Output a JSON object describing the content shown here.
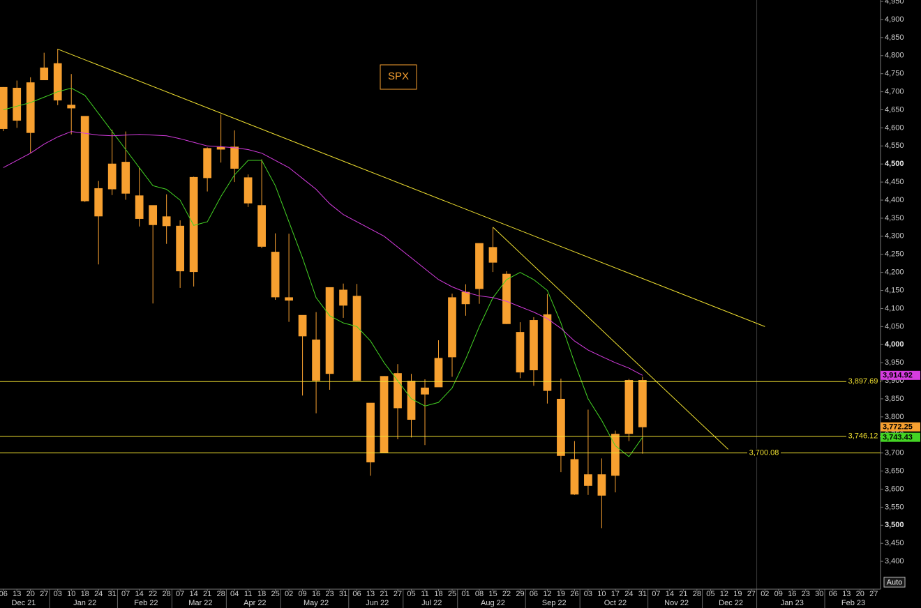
{
  "chart_data": {
    "type": "candlestick",
    "label": "SPX",
    "auto_button": "Auto",
    "ylim": [
      3323,
      4954
    ],
    "yticks": [
      {
        "value": 3400,
        "label": "3,400"
      },
      {
        "value": 3450,
        "label": "3,450"
      },
      {
        "value": 3500,
        "label": "3,500"
      },
      {
        "value": 3550,
        "label": "3,550"
      },
      {
        "value": 3600,
        "label": "3,600"
      },
      {
        "value": 3650,
        "label": "3,650"
      },
      {
        "value": 3700,
        "label": "3,700"
      },
      {
        "value": 3750,
        "label": "3,750"
      },
      {
        "value": 3800,
        "label": "3,800"
      },
      {
        "value": 3850,
        "label": "3,850"
      },
      {
        "value": 3900,
        "label": "3,900"
      },
      {
        "value": 3950,
        "label": "3,950"
      },
      {
        "value": 4000,
        "label": "4,000"
      },
      {
        "value": 4050,
        "label": "4,050"
      },
      {
        "value": 4100,
        "label": "4,100"
      },
      {
        "value": 4150,
        "label": "4,150"
      },
      {
        "value": 4200,
        "label": "4,200"
      },
      {
        "value": 4250,
        "label": "4,250"
      },
      {
        "value": 4300,
        "label": "4,300"
      },
      {
        "value": 4350,
        "label": "4,350"
      },
      {
        "value": 4400,
        "label": "4,400"
      },
      {
        "value": 4450,
        "label": "4,450"
      },
      {
        "value": 4500,
        "label": "4,500"
      },
      {
        "value": 4550,
        "label": "4,550"
      },
      {
        "value": 4600,
        "label": "4,600"
      },
      {
        "value": 4650,
        "label": "4,650"
      },
      {
        "value": 4700,
        "label": "4,700"
      },
      {
        "value": 4750,
        "label": "4,750"
      },
      {
        "value": 4800,
        "label": "4,800"
      },
      {
        "value": 4850,
        "label": "4,850"
      },
      {
        "value": 4900,
        "label": "4,900"
      },
      {
        "value": 4950,
        "label": "4,950"
      }
    ],
    "categories": [
      "06",
      "13",
      "20",
      "27",
      "03",
      "10",
      "18",
      "24",
      "31",
      "07",
      "14",
      "22",
      "28",
      "07",
      "14",
      "21",
      "28",
      "04",
      "11",
      "18",
      "25",
      "02",
      "09",
      "16",
      "23",
      "31",
      "06",
      "13",
      "21",
      "27",
      "05",
      "11",
      "18",
      "25",
      "01",
      "08",
      "15",
      "22",
      "29",
      "06",
      "12",
      "19",
      "26",
      "03",
      "10",
      "17",
      "24",
      "31",
      "07",
      "14",
      "21",
      "28",
      "05",
      "12",
      "19",
      "27",
      "02",
      "09",
      "16",
      "23",
      "30",
      "06",
      "13",
      "20",
      "27"
    ],
    "months": [
      "Dec 21",
      null,
      null,
      null,
      "Jan 22",
      null,
      null,
      null,
      null,
      "Feb 22",
      null,
      null,
      null,
      "Mar 22",
      null,
      null,
      null,
      "Apr 22",
      null,
      null,
      null,
      "May 22",
      null,
      null,
      null,
      null,
      "Jun 22",
      null,
      null,
      null,
      "Jul 22",
      null,
      null,
      null,
      "Aug 22",
      null,
      null,
      null,
      null,
      "Sep 22",
      null,
      null,
      null,
      "Oct 22",
      null,
      null,
      null,
      null,
      "Nov 22",
      null,
      null,
      null,
      "Dec 22",
      null,
      null,
      null,
      "Jan 23",
      null,
      null,
      null,
      null,
      "Feb 23",
      null,
      null,
      null
    ],
    "series": [
      {
        "name": "SPX",
        "color": "#f7a030",
        "last_label": "3,772.25",
        "open": [
          4598,
          4710,
          4587,
          4733,
          4778,
          4655,
          4632,
          4356,
          4431,
          4505,
          4412,
          4332,
          4354,
          4328,
          4202,
          4462,
          4541,
          4547,
          4462,
          4385,
          4256,
          4130,
          4081,
          4013,
          3920,
          4151,
          4134,
          3838,
          3701,
          3920,
          3793,
          3880,
          3883,
          3966,
          4113,
          4155,
          4269,
          4195,
          4034,
          3930,
          4083,
          3849,
          3682,
          3610,
          3640,
          3638,
          3754,
          3901,
          null,
          null,
          null,
          null,
          null,
          null,
          null,
          null,
          null,
          null,
          null,
          null,
          null,
          null,
          null,
          null,
          null
        ],
        "high": [
          4713,
          4731,
          4740,
          4808,
          4819,
          4749,
          4632,
          4453,
          4595,
          4590,
          4490,
          4385,
          4416,
          4344,
          4465,
          4546,
          4637,
          4593,
          4471,
          4513,
          4308,
          4307,
          4081,
          4090,
          4158,
          4169,
          4168,
          3838,
          3913,
          3946,
          3919,
          3904,
          4012,
          4141,
          4167,
          4280,
          4325,
          4203,
          4062,
          4076,
          4140,
          3906,
          3733,
          3820,
          3685,
          3762,
          3905,
          3911,
          null,
          null,
          null,
          null,
          null,
          null,
          null,
          null,
          null,
          null,
          null,
          null,
          null,
          null,
          null,
          null,
          null
        ],
        "low": [
          4591,
          4600,
          4531,
          4733,
          4663,
          4582,
          4395,
          4222,
          4414,
          4401,
          4327,
          4114,
          4279,
          4157,
          4161,
          4424,
          4504,
          4450,
          4381,
          4267,
          4124,
          4063,
          3859,
          3810,
          3875,
          4074,
          3900,
          3637,
          3701,
          3738,
          3743,
          3722,
          3883,
          3911,
          4080,
          4113,
          4201,
          4057,
          3907,
          3886,
          3837,
          3647,
          3584,
          3584,
          3492,
          3591,
          3733,
          3698,
          null,
          null,
          null,
          null,
          null,
          null,
          null,
          null,
          null,
          null,
          null,
          null,
          null,
          null,
          null,
          null,
          null
        ],
        "close": [
          4712,
          4621,
          4725,
          4766,
          4677,
          4663,
          4398,
          4432,
          4500,
          4419,
          4349,
          4385,
          4329,
          4204,
          4463,
          4543,
          4546,
          4488,
          4392,
          4272,
          4132,
          4123,
          4024,
          3901,
          4158,
          4109,
          3901,
          3675,
          3912,
          3825,
          3899,
          3863,
          3962,
          4130,
          4145,
          4280,
          4228,
          4058,
          3924,
          4067,
          3873,
          3693,
          3586,
          3640,
          3583,
          3752,
          3901,
          3772.25,
          null,
          null,
          null,
          null,
          null,
          null,
          null,
          null,
          null,
          null,
          null,
          null,
          null,
          null,
          null,
          null,
          null
        ]
      },
      {
        "color": "#44d424",
        "last_label": "3,743.43",
        "values": [
          4650,
          4660,
          4670,
          4685,
          4700,
          4710,
          4690,
          4640,
          4590,
          4540,
          4490,
          4440,
          4430,
          4400,
          4330,
          4340,
          4410,
          4470,
          4510,
          4510,
          4440,
          4340,
          4240,
          4130,
          4080,
          4060,
          4050,
          4010,
          3950,
          3900,
          3850,
          3830,
          3840,
          3880,
          3960,
          4050,
          4130,
          4180,
          4200,
          4180,
          4150,
          4060,
          3950,
          3850,
          3790,
          3720,
          3690,
          3743.43,
          null,
          null,
          null,
          null,
          null,
          null,
          null,
          null,
          null,
          null,
          null,
          null,
          null,
          null,
          null,
          null,
          null
        ]
      },
      {
        "color": "#d63ce0",
        "last_label": "3,914.92",
        "values": [
          4490,
          4510,
          4530,
          4555,
          4575,
          4590,
          4585,
          4580,
          4578,
          4580,
          4582,
          4580,
          4578,
          4570,
          4560,
          4550,
          4548,
          4545,
          4540,
          4530,
          4510,
          4490,
          4460,
          4430,
          4390,
          4360,
          4340,
          4320,
          4300,
          4270,
          4240,
          4210,
          4180,
          4160,
          4145,
          4135,
          4130,
          4120,
          4105,
          4090,
          4072,
          4045,
          4010,
          3985,
          3967,
          3950,
          3935,
          3914.92,
          null,
          null,
          null,
          null,
          null,
          null,
          null,
          null,
          null,
          null,
          null,
          null,
          null,
          null,
          null,
          null,
          null
        ]
      }
    ],
    "hlines": [
      {
        "value": 3897.69,
        "label": "3,897.69"
      },
      {
        "value": 3746.12,
        "label": "3,746.12"
      },
      {
        "value": 3700.08,
        "label": "3,700.08"
      }
    ],
    "trendlines": [
      {
        "x": [
          4,
          56
        ],
        "y": [
          4818,
          4050
        ]
      },
      {
        "x": [
          36,
          53.3
        ],
        "y": [
          4325,
          3710
        ]
      }
    ],
    "line_color": "#f0e030"
  }
}
